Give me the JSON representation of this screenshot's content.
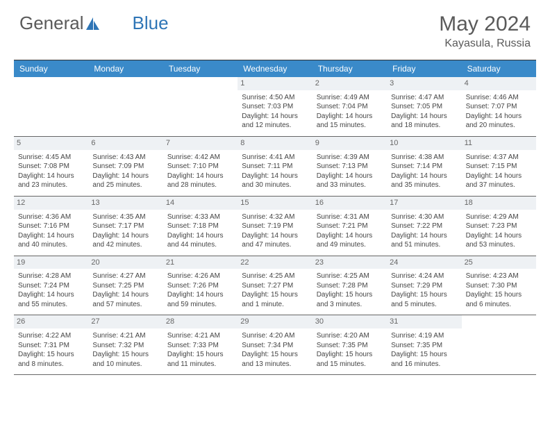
{
  "brand": {
    "part1": "General",
    "part2": "Blue"
  },
  "title": "May 2024",
  "location": "Kayasula, Russia",
  "colors": {
    "header_bg": "#3a8ac9",
    "header_text": "#ffffff",
    "daynum_bg": "#eef1f4",
    "text": "#444444",
    "brand_gray": "#5a5a5a",
    "brand_blue": "#2e75b6",
    "rule": "#666666"
  },
  "day_labels": [
    "Sunday",
    "Monday",
    "Tuesday",
    "Wednesday",
    "Thursday",
    "Friday",
    "Saturday"
  ],
  "weeks": [
    [
      {
        "empty": true
      },
      {
        "empty": true
      },
      {
        "empty": true
      },
      {
        "num": "1",
        "sunrise": "Sunrise: 4:50 AM",
        "sunset": "Sunset: 7:03 PM",
        "day1": "Daylight: 14 hours",
        "day2": "and 12 minutes."
      },
      {
        "num": "2",
        "sunrise": "Sunrise: 4:49 AM",
        "sunset": "Sunset: 7:04 PM",
        "day1": "Daylight: 14 hours",
        "day2": "and 15 minutes."
      },
      {
        "num": "3",
        "sunrise": "Sunrise: 4:47 AM",
        "sunset": "Sunset: 7:05 PM",
        "day1": "Daylight: 14 hours",
        "day2": "and 18 minutes."
      },
      {
        "num": "4",
        "sunrise": "Sunrise: 4:46 AM",
        "sunset": "Sunset: 7:07 PM",
        "day1": "Daylight: 14 hours",
        "day2": "and 20 minutes."
      }
    ],
    [
      {
        "num": "5",
        "sunrise": "Sunrise: 4:45 AM",
        "sunset": "Sunset: 7:08 PM",
        "day1": "Daylight: 14 hours",
        "day2": "and 23 minutes."
      },
      {
        "num": "6",
        "sunrise": "Sunrise: 4:43 AM",
        "sunset": "Sunset: 7:09 PM",
        "day1": "Daylight: 14 hours",
        "day2": "and 25 minutes."
      },
      {
        "num": "7",
        "sunrise": "Sunrise: 4:42 AM",
        "sunset": "Sunset: 7:10 PM",
        "day1": "Daylight: 14 hours",
        "day2": "and 28 minutes."
      },
      {
        "num": "8",
        "sunrise": "Sunrise: 4:41 AM",
        "sunset": "Sunset: 7:11 PM",
        "day1": "Daylight: 14 hours",
        "day2": "and 30 minutes."
      },
      {
        "num": "9",
        "sunrise": "Sunrise: 4:39 AM",
        "sunset": "Sunset: 7:13 PM",
        "day1": "Daylight: 14 hours",
        "day2": "and 33 minutes."
      },
      {
        "num": "10",
        "sunrise": "Sunrise: 4:38 AM",
        "sunset": "Sunset: 7:14 PM",
        "day1": "Daylight: 14 hours",
        "day2": "and 35 minutes."
      },
      {
        "num": "11",
        "sunrise": "Sunrise: 4:37 AM",
        "sunset": "Sunset: 7:15 PM",
        "day1": "Daylight: 14 hours",
        "day2": "and 37 minutes."
      }
    ],
    [
      {
        "num": "12",
        "sunrise": "Sunrise: 4:36 AM",
        "sunset": "Sunset: 7:16 PM",
        "day1": "Daylight: 14 hours",
        "day2": "and 40 minutes."
      },
      {
        "num": "13",
        "sunrise": "Sunrise: 4:35 AM",
        "sunset": "Sunset: 7:17 PM",
        "day1": "Daylight: 14 hours",
        "day2": "and 42 minutes."
      },
      {
        "num": "14",
        "sunrise": "Sunrise: 4:33 AM",
        "sunset": "Sunset: 7:18 PM",
        "day1": "Daylight: 14 hours",
        "day2": "and 44 minutes."
      },
      {
        "num": "15",
        "sunrise": "Sunrise: 4:32 AM",
        "sunset": "Sunset: 7:19 PM",
        "day1": "Daylight: 14 hours",
        "day2": "and 47 minutes."
      },
      {
        "num": "16",
        "sunrise": "Sunrise: 4:31 AM",
        "sunset": "Sunset: 7:21 PM",
        "day1": "Daylight: 14 hours",
        "day2": "and 49 minutes."
      },
      {
        "num": "17",
        "sunrise": "Sunrise: 4:30 AM",
        "sunset": "Sunset: 7:22 PM",
        "day1": "Daylight: 14 hours",
        "day2": "and 51 minutes."
      },
      {
        "num": "18",
        "sunrise": "Sunrise: 4:29 AM",
        "sunset": "Sunset: 7:23 PM",
        "day1": "Daylight: 14 hours",
        "day2": "and 53 minutes."
      }
    ],
    [
      {
        "num": "19",
        "sunrise": "Sunrise: 4:28 AM",
        "sunset": "Sunset: 7:24 PM",
        "day1": "Daylight: 14 hours",
        "day2": "and 55 minutes."
      },
      {
        "num": "20",
        "sunrise": "Sunrise: 4:27 AM",
        "sunset": "Sunset: 7:25 PM",
        "day1": "Daylight: 14 hours",
        "day2": "and 57 minutes."
      },
      {
        "num": "21",
        "sunrise": "Sunrise: 4:26 AM",
        "sunset": "Sunset: 7:26 PM",
        "day1": "Daylight: 14 hours",
        "day2": "and 59 minutes."
      },
      {
        "num": "22",
        "sunrise": "Sunrise: 4:25 AM",
        "sunset": "Sunset: 7:27 PM",
        "day1": "Daylight: 15 hours",
        "day2": "and 1 minute."
      },
      {
        "num": "23",
        "sunrise": "Sunrise: 4:25 AM",
        "sunset": "Sunset: 7:28 PM",
        "day1": "Daylight: 15 hours",
        "day2": "and 3 minutes."
      },
      {
        "num": "24",
        "sunrise": "Sunrise: 4:24 AM",
        "sunset": "Sunset: 7:29 PM",
        "day1": "Daylight: 15 hours",
        "day2": "and 5 minutes."
      },
      {
        "num": "25",
        "sunrise": "Sunrise: 4:23 AM",
        "sunset": "Sunset: 7:30 PM",
        "day1": "Daylight: 15 hours",
        "day2": "and 6 minutes."
      }
    ],
    [
      {
        "num": "26",
        "sunrise": "Sunrise: 4:22 AM",
        "sunset": "Sunset: 7:31 PM",
        "day1": "Daylight: 15 hours",
        "day2": "and 8 minutes."
      },
      {
        "num": "27",
        "sunrise": "Sunrise: 4:21 AM",
        "sunset": "Sunset: 7:32 PM",
        "day1": "Daylight: 15 hours",
        "day2": "and 10 minutes."
      },
      {
        "num": "28",
        "sunrise": "Sunrise: 4:21 AM",
        "sunset": "Sunset: 7:33 PM",
        "day1": "Daylight: 15 hours",
        "day2": "and 11 minutes."
      },
      {
        "num": "29",
        "sunrise": "Sunrise: 4:20 AM",
        "sunset": "Sunset: 7:34 PM",
        "day1": "Daylight: 15 hours",
        "day2": "and 13 minutes."
      },
      {
        "num": "30",
        "sunrise": "Sunrise: 4:20 AM",
        "sunset": "Sunset: 7:35 PM",
        "day1": "Daylight: 15 hours",
        "day2": "and 15 minutes."
      },
      {
        "num": "31",
        "sunrise": "Sunrise: 4:19 AM",
        "sunset": "Sunset: 7:35 PM",
        "day1": "Daylight: 15 hours",
        "day2": "and 16 minutes."
      },
      {
        "empty": true
      }
    ]
  ]
}
